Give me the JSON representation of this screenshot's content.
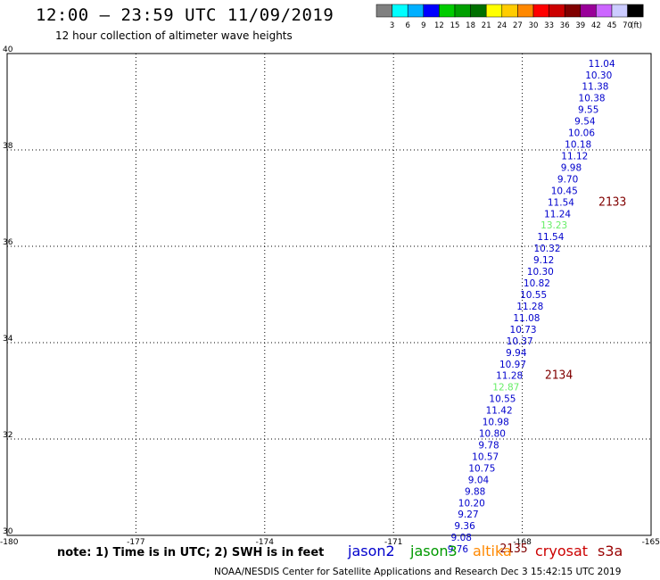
{
  "header": {
    "title": "12:00 – 23:59 UTC 11/09/2019",
    "subtitle": "12 hour collection of altimeter wave heights"
  },
  "footer": {
    "note": "note: 1) Time is in UTC; 2) SWH is in feet",
    "credit": "NOAA/NESDIS Center for Satellite Applications and Research    Dec  3 15:42:15 UTC 2019",
    "satellites": [
      {
        "name": "jason2",
        "color": "#0000cc"
      },
      {
        "name": "jason3",
        "color": "#009900"
      },
      {
        "name": "altika",
        "color": "#ff8800"
      },
      {
        "name": "cryosat",
        "color": "#cc0000"
      },
      {
        "name": "s3a",
        "color": "#990000"
      }
    ]
  },
  "colorbar": {
    "colors": [
      "#808080",
      "#00ffff",
      "#00b0ff",
      "#0000ff",
      "#00cc00",
      "#00a000",
      "#007000",
      "#ffff00",
      "#ffcc00",
      "#ff8800",
      "#ff0000",
      "#cc0000",
      "#800000",
      "#990099",
      "#cc66ff",
      "#ccccff",
      "#000000"
    ],
    "labels": [
      "3",
      "6",
      "9",
      "12",
      "15",
      "18",
      "21",
      "24",
      "27",
      "30",
      "33",
      "36",
      "39",
      "42",
      "45",
      "70",
      "(ft)"
    ]
  },
  "chart_data": {
    "type": "scatter",
    "title": "12:00 – 23:59 UTC 11/09/2019",
    "subtitle": "12 hour collection of altimeter wave heights",
    "xlim": [
      -180,
      -165
    ],
    "ylim": [
      30,
      40
    ],
    "x_ticks": [
      "-180",
      "-177",
      "-174",
      "-171",
      "-168",
      "-165"
    ],
    "y_ticks": [
      "30",
      "32",
      "34",
      "36",
      "38",
      "40"
    ],
    "grid": true,
    "points": [
      {
        "lon": -166.15,
        "lat": 39.8,
        "label": "11.04",
        "color": "#0000cc"
      },
      {
        "lon": -166.22,
        "lat": 39.56,
        "label": "10.30",
        "color": "#0000cc"
      },
      {
        "lon": -166.3,
        "lat": 39.32,
        "label": "11.38",
        "color": "#0000cc"
      },
      {
        "lon": -166.38,
        "lat": 39.08,
        "label": "10.38",
        "color": "#0000cc"
      },
      {
        "lon": -166.46,
        "lat": 38.84,
        "label": "9.55",
        "color": "#0000cc"
      },
      {
        "lon": -166.54,
        "lat": 38.6,
        "label": "9.54",
        "color": "#0000cc"
      },
      {
        "lon": -166.62,
        "lat": 38.36,
        "label": "10.06",
        "color": "#0000cc"
      },
      {
        "lon": -166.7,
        "lat": 38.12,
        "label": "10.18",
        "color": "#0000cc"
      },
      {
        "lon": -166.78,
        "lat": 37.88,
        "label": "11.12",
        "color": "#0000cc"
      },
      {
        "lon": -166.86,
        "lat": 37.64,
        "label": "9.98",
        "color": "#0000cc"
      },
      {
        "lon": -166.94,
        "lat": 37.4,
        "label": "9.70",
        "color": "#0000cc"
      },
      {
        "lon": -167.02,
        "lat": 37.16,
        "label": "10.45",
        "color": "#0000cc"
      },
      {
        "lon": -167.1,
        "lat": 36.92,
        "label": "11.54",
        "color": "#0000cc"
      },
      {
        "lon": -167.18,
        "lat": 36.68,
        "label": "11.24",
        "color": "#0000cc"
      },
      {
        "lon": -167.26,
        "lat": 36.44,
        "label": "13.23",
        "color": "#66ee66"
      },
      {
        "lon": -167.34,
        "lat": 36.2,
        "label": "11.54",
        "color": "#0000cc"
      },
      {
        "lon": -167.42,
        "lat": 35.96,
        "label": "10.32",
        "color": "#0000cc"
      },
      {
        "lon": -167.5,
        "lat": 35.72,
        "label": "9.12",
        "color": "#0000cc"
      },
      {
        "lon": -167.58,
        "lat": 35.48,
        "label": "10.30",
        "color": "#0000cc"
      },
      {
        "lon": -167.66,
        "lat": 35.24,
        "label": "10.82",
        "color": "#0000cc"
      },
      {
        "lon": -167.74,
        "lat": 35.0,
        "label": "10.55",
        "color": "#0000cc"
      },
      {
        "lon": -167.82,
        "lat": 34.76,
        "label": "11.28",
        "color": "#0000cc"
      },
      {
        "lon": -167.9,
        "lat": 34.52,
        "label": "11.08",
        "color": "#0000cc"
      },
      {
        "lon": -167.98,
        "lat": 34.28,
        "label": "10.73",
        "color": "#0000cc"
      },
      {
        "lon": -168.06,
        "lat": 34.04,
        "label": "10.37",
        "color": "#0000cc"
      },
      {
        "lon": -168.14,
        "lat": 33.8,
        "label": "9.94",
        "color": "#0000cc"
      },
      {
        "lon": -168.22,
        "lat": 33.56,
        "label": "10.97",
        "color": "#0000cc"
      },
      {
        "lon": -168.3,
        "lat": 33.32,
        "label": "11.28",
        "color": "#0000cc"
      },
      {
        "lon": -168.38,
        "lat": 33.08,
        "label": "12.87",
        "color": "#66ee66"
      },
      {
        "lon": -168.46,
        "lat": 32.84,
        "label": "10.55",
        "color": "#0000cc"
      },
      {
        "lon": -168.54,
        "lat": 32.6,
        "label": "11.42",
        "color": "#0000cc"
      },
      {
        "lon": -168.62,
        "lat": 32.36,
        "label": "10.98",
        "color": "#0000cc"
      },
      {
        "lon": -168.7,
        "lat": 32.12,
        "label": "10.80",
        "color": "#0000cc"
      },
      {
        "lon": -168.78,
        "lat": 31.88,
        "label": "9.78",
        "color": "#0000cc"
      },
      {
        "lon": -168.86,
        "lat": 31.64,
        "label": "10.57",
        "color": "#0000cc"
      },
      {
        "lon": -168.94,
        "lat": 31.4,
        "label": "10.75",
        "color": "#0000cc"
      },
      {
        "lon": -169.02,
        "lat": 31.16,
        "label": "9.04",
        "color": "#0000cc"
      },
      {
        "lon": -169.1,
        "lat": 30.92,
        "label": "9.88",
        "color": "#0000cc"
      },
      {
        "lon": -169.18,
        "lat": 30.68,
        "label": "10.20",
        "color": "#0000cc"
      },
      {
        "lon": -169.26,
        "lat": 30.44,
        "label": "9.27",
        "color": "#0000cc"
      },
      {
        "lon": -169.34,
        "lat": 30.2,
        "label": "9.36",
        "color": "#0000cc"
      },
      {
        "lon": -169.42,
        "lat": 29.96,
        "label": "9.08",
        "color": "#0000cc"
      },
      {
        "lon": -169.5,
        "lat": 29.72,
        "label": "9.76",
        "color": "#0000cc"
      }
    ],
    "pass_labels": [
      {
        "lon": -165.9,
        "lat": 36.92,
        "label": "2133"
      },
      {
        "lon": -167.15,
        "lat": 33.32,
        "label": "2134"
      },
      {
        "lon": -168.2,
        "lat": 29.72,
        "label": "2135"
      }
    ]
  }
}
